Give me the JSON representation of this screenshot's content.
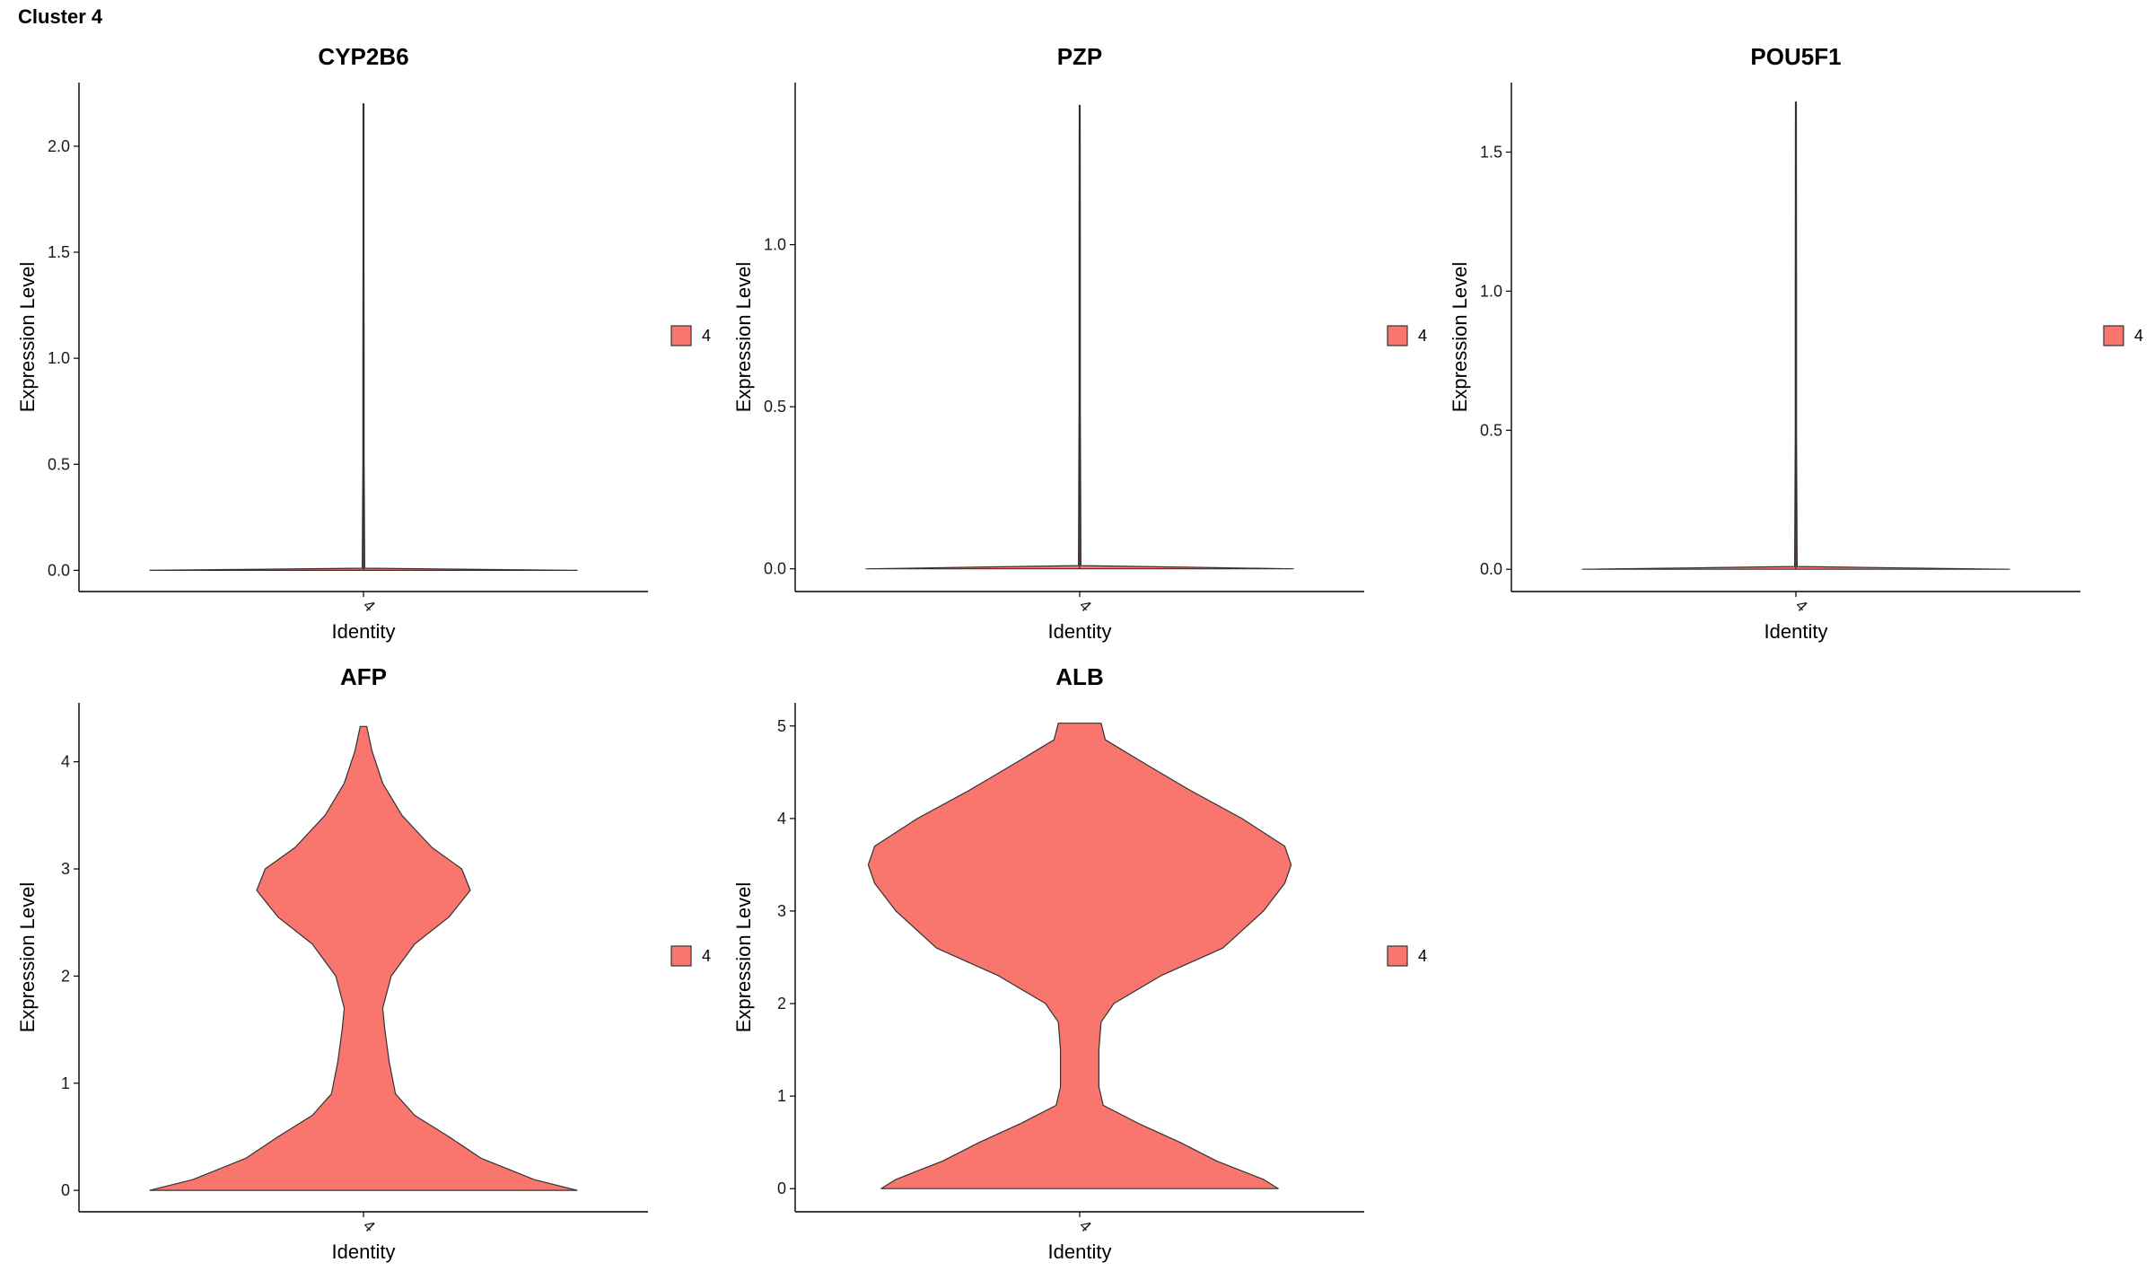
{
  "figure_title": "Cluster 4",
  "chart_data": [
    {
      "type": "violin",
      "title": "CYP2B6",
      "xlabel": "Identity",
      "ylabel": "Expression Level",
      "categories": [
        "4"
      ],
      "ylim": [
        -0.1,
        2.3
      ],
      "yticks": [
        0.0,
        0.5,
        1.0,
        1.5,
        2.0
      ],
      "ytick_labels": [
        "0.0",
        "0.5",
        "1.0",
        "1.5",
        "2.0"
      ],
      "fill": "#F8766D",
      "legend": {
        "labels": [
          "4"
        ],
        "placement": "right"
      },
      "max_value": 2.2,
      "density": [
        [
          0,
          1.0
        ],
        [
          0.005,
          0.5
        ],
        [
          0.01,
          0.006
        ],
        [
          0.5,
          0.003
        ],
        [
          1.0,
          0.003
        ],
        [
          1.5,
          0.002
        ],
        [
          2.2,
          0.002
        ]
      ]
    },
    {
      "type": "violin",
      "title": "PZP",
      "xlabel": "Identity",
      "ylabel": "Expression Level",
      "categories": [
        "4"
      ],
      "ylim": [
        -0.07,
        1.5
      ],
      "yticks": [
        0.0,
        0.5,
        1.0
      ],
      "ytick_labels": [
        "0.0",
        "0.5",
        "1.0"
      ],
      "fill": "#F8766D",
      "legend": {
        "labels": [
          "4"
        ],
        "placement": "right"
      },
      "max_value": 1.43,
      "density": [
        [
          0,
          1.0
        ],
        [
          0.005,
          0.5
        ],
        [
          0.01,
          0.006
        ],
        [
          0.5,
          0.003
        ],
        [
          1.0,
          0.003
        ],
        [
          1.43,
          0.002
        ]
      ]
    },
    {
      "type": "violin",
      "title": "POU5F1",
      "xlabel": "Identity",
      "ylabel": "Expression Level",
      "categories": [
        "4"
      ],
      "ylim": [
        -0.08,
        1.75
      ],
      "yticks": [
        0.0,
        0.5,
        1.0,
        1.5
      ],
      "ytick_labels": [
        "0.0",
        "0.5",
        "1.0",
        "1.5"
      ],
      "fill": "#F8766D",
      "legend": {
        "labels": [
          "4"
        ],
        "placement": "right"
      },
      "max_value": 1.68,
      "density": [
        [
          0,
          1.0
        ],
        [
          0.005,
          0.5
        ],
        [
          0.01,
          0.006
        ],
        [
          0.5,
          0.003
        ],
        [
          1.0,
          0.003
        ],
        [
          1.68,
          0.002
        ]
      ]
    },
    {
      "type": "violin",
      "title": "AFP",
      "xlabel": "Identity",
      "ylabel": "Expression Level",
      "categories": [
        "4"
      ],
      "ylim": [
        -0.2,
        4.55
      ],
      "yticks": [
        0,
        1,
        2,
        3,
        4
      ],
      "ytick_labels": [
        "0",
        "1",
        "2",
        "3",
        "4"
      ],
      "fill": "#F8766D",
      "legend": {
        "labels": [
          "4"
        ],
        "placement": "right"
      },
      "max_value": 4.33,
      "density": [
        [
          0,
          1.0
        ],
        [
          0.1,
          0.8
        ],
        [
          0.3,
          0.55
        ],
        [
          0.5,
          0.4
        ],
        [
          0.7,
          0.24
        ],
        [
          0.9,
          0.15
        ],
        [
          1.2,
          0.12
        ],
        [
          1.5,
          0.1
        ],
        [
          1.7,
          0.09
        ],
        [
          2.0,
          0.13
        ],
        [
          2.3,
          0.24
        ],
        [
          2.55,
          0.4
        ],
        [
          2.8,
          0.5
        ],
        [
          3.0,
          0.46
        ],
        [
          3.2,
          0.32
        ],
        [
          3.5,
          0.18
        ],
        [
          3.8,
          0.09
        ],
        [
          4.1,
          0.04
        ],
        [
          4.33,
          0.015
        ]
      ]
    },
    {
      "type": "violin",
      "title": "ALB",
      "xlabel": "Identity",
      "ylabel": "Expression Level",
      "categories": [
        "4"
      ],
      "ylim": [
        -0.25,
        5.25
      ],
      "yticks": [
        0,
        1,
        2,
        3,
        4,
        5
      ],
      "ytick_labels": [
        "0",
        "1",
        "2",
        "3",
        "4",
        "5"
      ],
      "fill": "#F8766D",
      "legend": {
        "labels": [
          "4"
        ],
        "placement": "right"
      },
      "max_value": 5.03,
      "density": [
        [
          0,
          0.93
        ],
        [
          0.1,
          0.86
        ],
        [
          0.3,
          0.64
        ],
        [
          0.5,
          0.47
        ],
        [
          0.7,
          0.28
        ],
        [
          0.9,
          0.11
        ],
        [
          1.1,
          0.09
        ],
        [
          1.5,
          0.09
        ],
        [
          1.8,
          0.1
        ],
        [
          2.0,
          0.16
        ],
        [
          2.3,
          0.38
        ],
        [
          2.6,
          0.67
        ],
        [
          3.0,
          0.86
        ],
        [
          3.3,
          0.96
        ],
        [
          3.5,
          0.99
        ],
        [
          3.7,
          0.96
        ],
        [
          4.0,
          0.76
        ],
        [
          4.3,
          0.52
        ],
        [
          4.6,
          0.3
        ],
        [
          4.85,
          0.12
        ],
        [
          5.03,
          0.1
        ]
      ]
    }
  ]
}
